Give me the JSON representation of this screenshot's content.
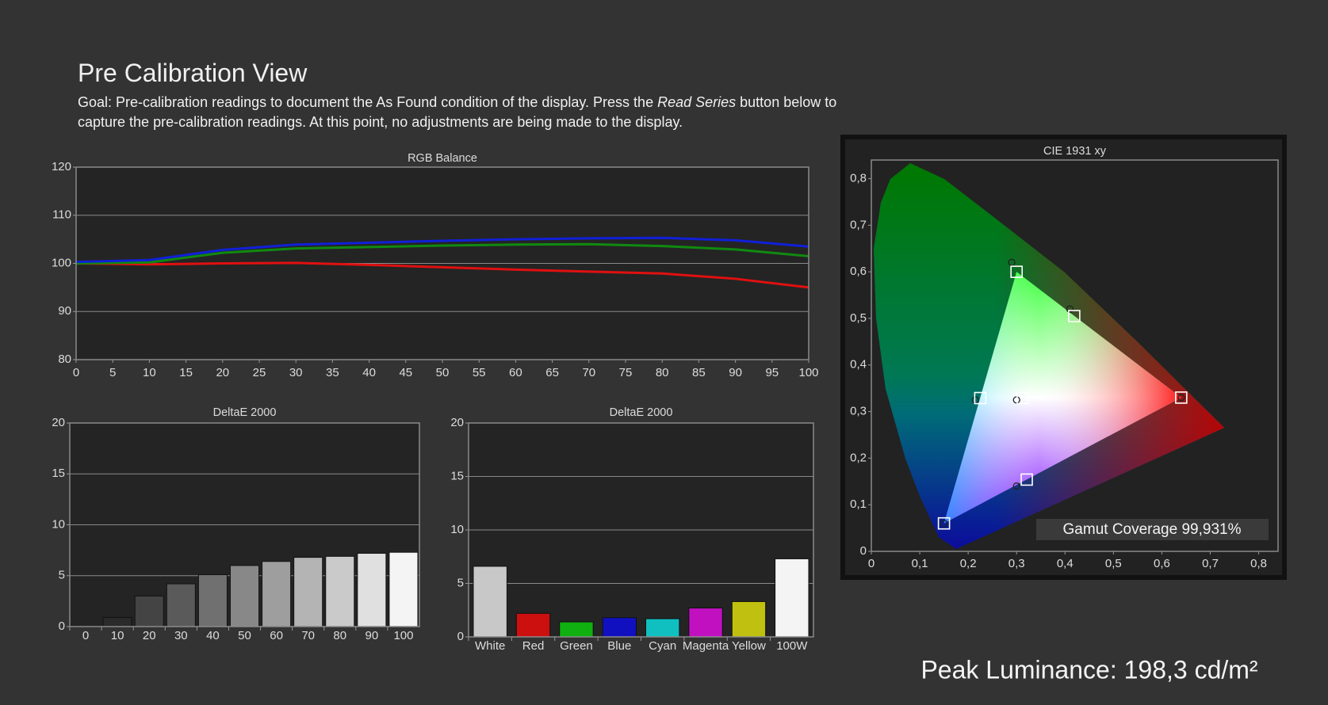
{
  "header": {
    "title": "Pre Calibration View",
    "goal": [
      "Goal: Pre-calibration readings to document the As Found condition of the display. Press the ",
      "Read Series",
      " button below to capture the pre-calibration readings. At this point, no adjustments are being made to the display."
    ]
  },
  "footer": {
    "peak_luminance": "Peak Luminance: 198,3 cd/m²"
  },
  "chart_data": [
    {
      "type": "line",
      "title": "RGB Balance",
      "x": [
        0,
        10,
        20,
        30,
        40,
        50,
        60,
        70,
        80,
        90,
        100
      ],
      "series": [
        {
          "color": "#e01010",
          "values": [
            100,
            99.8,
            100,
            100.1,
            99.7,
            99.2,
            98.7,
            98.3,
            97.9,
            96.8,
            95.0
          ]
        },
        {
          "color": "#108a10",
          "values": [
            100,
            100.2,
            102.2,
            103.1,
            103.4,
            103.7,
            103.9,
            104.0,
            103.6,
            102.9,
            101.5
          ]
        },
        {
          "color": "#1020d8",
          "values": [
            100.3,
            100.7,
            102.8,
            103.9,
            104.3,
            104.7,
            105.0,
            105.2,
            105.3,
            104.8,
            103.5
          ]
        }
      ],
      "xlim": [
        0,
        100
      ],
      "ylim": [
        80,
        120
      ],
      "xticks": [
        0,
        5,
        10,
        15,
        20,
        25,
        30,
        35,
        40,
        45,
        50,
        55,
        60,
        65,
        70,
        75,
        80,
        85,
        90,
        95,
        100
      ],
      "yticks": [
        80,
        90,
        100,
        110,
        120
      ],
      "grid": true
    },
    {
      "type": "bar",
      "title": "DeltaE 2000",
      "categories": [
        "0",
        "10",
        "20",
        "30",
        "40",
        "50",
        "60",
        "70",
        "80",
        "90",
        "100"
      ],
      "values": [
        0,
        0.9,
        3.0,
        4.2,
        5.1,
        6.0,
        6.4,
        6.8,
        6.9,
        7.2,
        7.3
      ],
      "colors": [
        "#111111",
        "#2a2a2a",
        "#444444",
        "#5a5a5a",
        "#707070",
        "#888888",
        "#9e9e9e",
        "#b4b4b4",
        "#cacaca",
        "#e0e0e0",
        "#f4f4f4"
      ],
      "ylim": [
        0,
        20
      ],
      "yticks": [
        0,
        5,
        10,
        15,
        20
      ],
      "grid": true
    },
    {
      "type": "bar",
      "title": "DeltaE 2000",
      "categories": [
        "White",
        "Red",
        "Green",
        "Blue",
        "Cyan",
        "Magenta",
        "Yellow",
        "100W"
      ],
      "values": [
        6.6,
        2.2,
        1.4,
        1.8,
        1.7,
        2.7,
        3.3,
        7.3
      ],
      "colors": [
        "#c8c8c8",
        "#cc1010",
        "#10b010",
        "#1010c0",
        "#10c0c0",
        "#c010c0",
        "#c0c010",
        "#f4f4f4"
      ],
      "ylim": [
        0,
        20
      ],
      "yticks": [
        0,
        5,
        10,
        15,
        20
      ],
      "grid": true
    },
    {
      "type": "cie",
      "title": "CIE 1931 xy",
      "xlim": [
        0,
        0.84
      ],
      "ylim": [
        0,
        0.84
      ],
      "xticks": [
        0,
        {
          "value": 0.1,
          "label": "0,1"
        },
        {
          "value": 0.2,
          "label": "0,2"
        },
        {
          "value": 0.3,
          "label": "0,3"
        },
        {
          "value": 0.4,
          "label": "0,4"
        },
        {
          "value": 0.5,
          "label": "0,5"
        },
        {
          "value": 0.6,
          "label": "0,6"
        },
        {
          "value": 0.7,
          "label": "0,7"
        },
        {
          "value": 0.8,
          "label": "0,8"
        }
      ],
      "yticks": [
        0,
        {
          "value": 0.1,
          "label": "0,1"
        },
        {
          "value": 0.2,
          "label": "0,2"
        },
        {
          "value": 0.3,
          "label": "0,3"
        },
        {
          "value": 0.4,
          "label": "0,4"
        },
        {
          "value": 0.5,
          "label": "0,5"
        },
        {
          "value": 0.6,
          "label": "0,6"
        },
        {
          "value": 0.7,
          "label": "0,7"
        },
        {
          "value": 0.8,
          "label": "0,8"
        }
      ],
      "targets": {
        "x": [
          0.64,
          0.3,
          0.15,
          0.3127,
          0.225,
          0.321,
          0.419
        ],
        "y": [
          0.33,
          0.6,
          0.06,
          0.329,
          0.329,
          0.154,
          0.505
        ]
      },
      "measured": {
        "x": [
          0.64,
          0.29,
          0.15,
          0.3,
          0.215,
          0.3,
          0.41
        ],
        "y": [
          0.33,
          0.62,
          0.06,
          0.325,
          0.325,
          0.14,
          0.52
        ]
      },
      "annotation": "Gamut Coverage 99,931%"
    }
  ]
}
